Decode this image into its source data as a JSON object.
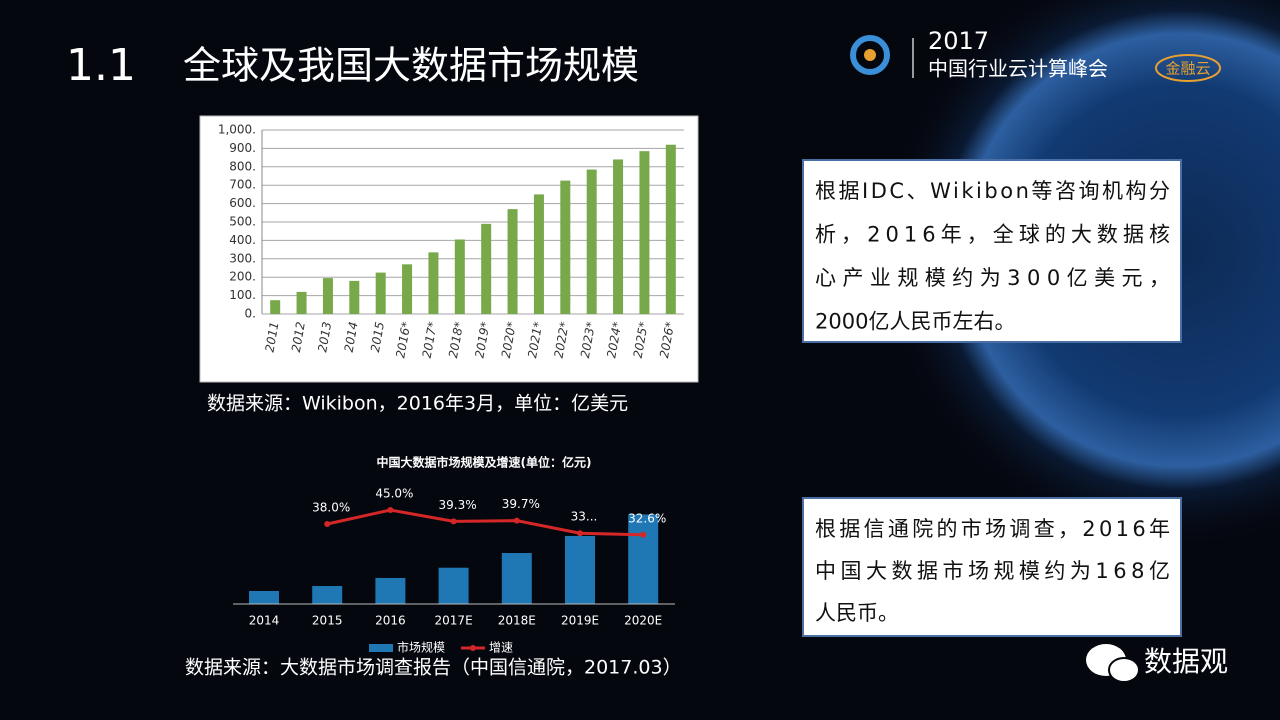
{
  "header": {
    "number": "1.1",
    "title": "全球及我国大数据市场规模"
  },
  "logo": {
    "year": "2017",
    "event": "中国行业云计算峰会",
    "tag": "金融云"
  },
  "chart_data": [
    {
      "type": "bar",
      "categories": [
        "2011",
        "2012",
        "2013",
        "2014",
        "2015",
        "2016*",
        "2017*",
        "2018*",
        "2019*",
        "2020*",
        "2021*",
        "2022*",
        "2023*",
        "2024*",
        "2025*",
        "2026*"
      ],
      "values": [
        75,
        120,
        195,
        180,
        225,
        270,
        335,
        405,
        490,
        570,
        650,
        725,
        785,
        840,
        885,
        920
      ],
      "color": "#77a84a",
      "ylim": [
        0,
        1000
      ],
      "yticks": [
        {
          "value": 0,
          "label": "0."
        },
        {
          "value": 100,
          "label": "100."
        },
        {
          "value": 200,
          "label": "200."
        },
        {
          "value": 300,
          "label": "300."
        },
        {
          "value": 400,
          "label": "400."
        },
        {
          "value": 500,
          "label": "500."
        },
        {
          "value": 600,
          "label": "600."
        },
        {
          "value": 700,
          "label": "700."
        },
        {
          "value": 800,
          "label": "800."
        },
        {
          "value": 900,
          "label": "900."
        },
        {
          "value": 1000,
          "label": "1,000."
        }
      ],
      "grid": true
    },
    {
      "type": "combo",
      "title": "中国大数据市场规模及增速(单位：亿元)",
      "categories": [
        "2014",
        "2015",
        "2016",
        "2017E",
        "2018E",
        "2019E",
        "2020E"
      ],
      "series": [
        {
          "name": "市场规模",
          "type": "bar",
          "color": "#1f77b4",
          "values": [
            84,
            116,
            168,
            234,
            329,
            439,
            578
          ]
        },
        {
          "name": "增速",
          "type": "line",
          "color": "#d62728",
          "values": [
            null,
            38.0,
            45.0,
            39.3,
            39.7,
            33.4,
            32.6
          ],
          "value_labels": [
            null,
            "38.0%",
            "45.0%",
            "39.3%",
            "39.7%",
            "33...",
            "32.6%"
          ]
        }
      ],
      "legend": "bottom"
    }
  ],
  "sources": [
    "数据来源：Wikibon，2016年3月，单位：亿美元",
    "数据来源：大数据市场调查报告（中国信通院，2017.03）"
  ],
  "notes": [
    {
      "lines": [
        "根据IDC、Wikibon等咨询机构分",
        "析，2016年，全球的大数据核",
        "心产业规模约为300亿美元，",
        "2000亿人民币左右。"
      ]
    },
    {
      "lines": [
        "根据信通院的市场调查，2016年",
        "中国大数据市场规模约为168亿",
        "人民币。"
      ]
    }
  ],
  "watermark": "数据观"
}
